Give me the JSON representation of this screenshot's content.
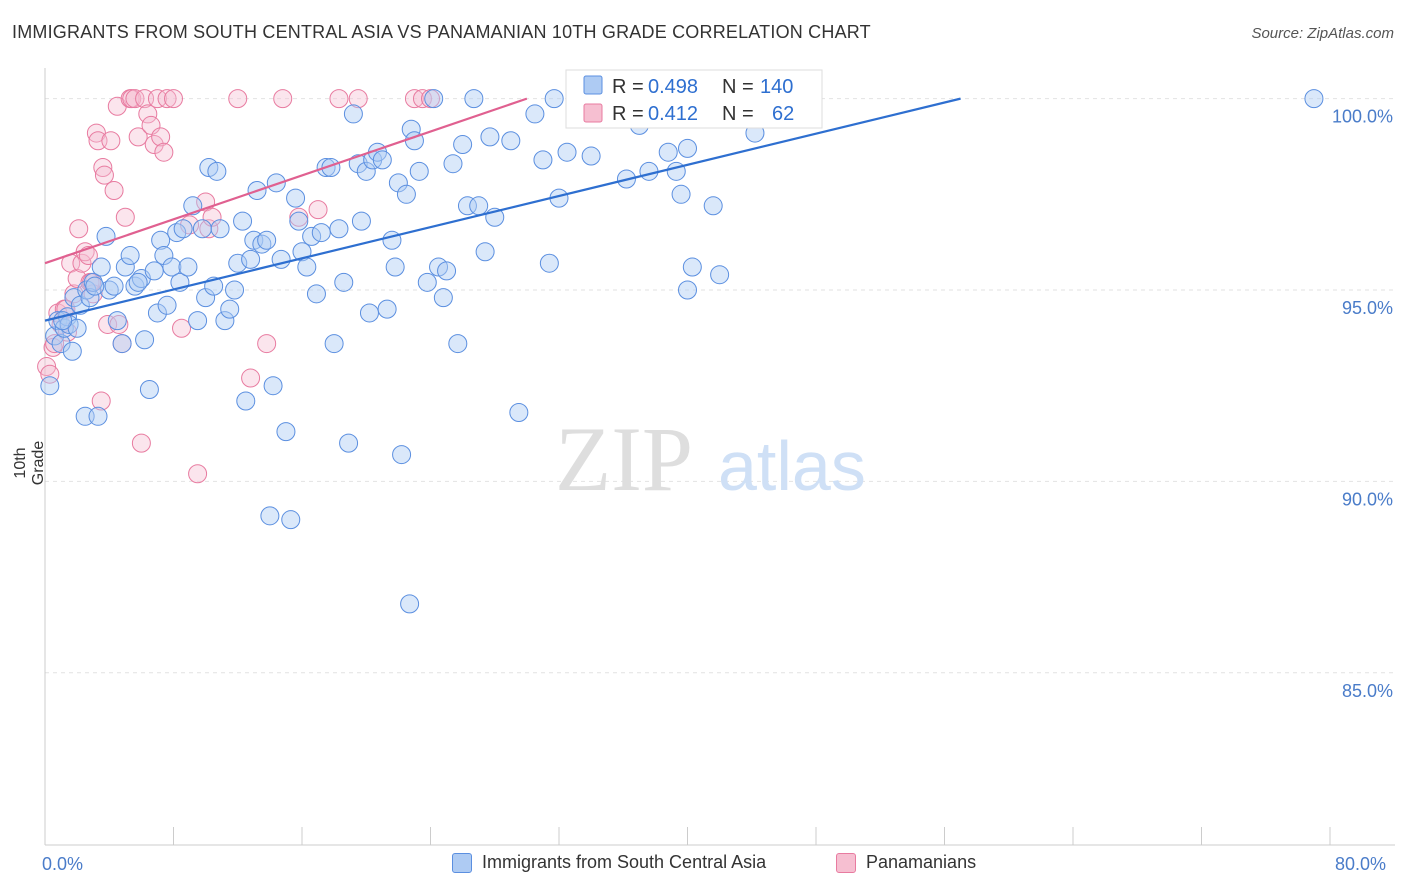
{
  "title": "IMMIGRANTS FROM SOUTH CENTRAL ASIA VS PANAMANIAN 10TH GRADE CORRELATION CHART",
  "source": "Source: ZipAtlas.com",
  "watermark": {
    "zip": "ZIP",
    "atlas": "atlas"
  },
  "colors": {
    "blue": "#5b8fe0",
    "blue_fill": "#aecbf3",
    "blue_line": "#2e6fd0",
    "pink": "#e87ba0",
    "pink_fill": "#f6bfd1",
    "pink_line": "#e06090",
    "tick": "#4a7cc9"
  },
  "legend": {
    "blue": {
      "r_label": "R =",
      "r_value": "0.498",
      "n_label": "N =",
      "n_value": "140"
    },
    "pink": {
      "r_label": "R =",
      "r_value": "0.412",
      "n_label": "N =",
      "n_value": "62"
    }
  },
  "bottom_legend": {
    "blue": "Immigrants from South Central Asia",
    "pink": "Panamanians"
  },
  "chart_data": {
    "type": "scatter",
    "title": "IMMIGRANTS FROM SOUTH CENTRAL ASIA VS PANAMANIAN 10TH GRADE CORRELATION CHART",
    "xlabel": "",
    "ylabel": "10th Grade",
    "xlim": [
      0,
      80
    ],
    "ylim": [
      80.5,
      100.8
    ],
    "x_tick_labels": [
      "0.0%",
      "80.0%"
    ],
    "y_ticks": [
      100,
      95,
      90,
      85
    ],
    "y_tick_labels": [
      "100.0%",
      "95.0%",
      "90.0%",
      "85.0%"
    ],
    "grid": true,
    "legend_position": "top-center",
    "series": [
      {
        "name": "Immigrants from South Central Asia",
        "trend": {
          "x": [
            0,
            57
          ],
          "y": [
            94.2,
            100
          ]
        },
        "points": [
          [
            0.3,
            92.5
          ],
          [
            0.6,
            93.8
          ],
          [
            0.8,
            94.2
          ],
          [
            1.0,
            93.6
          ],
          [
            1.2,
            94.0
          ],
          [
            1.4,
            94.3
          ],
          [
            1.5,
            94.1
          ],
          [
            1.7,
            93.4
          ],
          [
            1.8,
            94.8
          ],
          [
            2.0,
            94.0
          ],
          [
            2.2,
            94.6
          ],
          [
            2.5,
            91.7
          ],
          [
            2.6,
            95.0
          ],
          [
            2.8,
            94.8
          ],
          [
            3.0,
            95.2
          ],
          [
            3.3,
            91.7
          ],
          [
            3.5,
            95.6
          ],
          [
            3.8,
            96.4
          ],
          [
            4.0,
            95.0
          ],
          [
            4.3,
            95.1
          ],
          [
            4.5,
            94.2
          ],
          [
            4.8,
            93.6
          ],
          [
            5.0,
            95.6
          ],
          [
            5.3,
            95.9
          ],
          [
            5.6,
            95.1
          ],
          [
            6.0,
            95.3
          ],
          [
            6.2,
            93.7
          ],
          [
            6.5,
            92.4
          ],
          [
            6.8,
            95.5
          ],
          [
            7.0,
            94.4
          ],
          [
            7.2,
            96.3
          ],
          [
            7.4,
            95.9
          ],
          [
            7.6,
            94.6
          ],
          [
            7.9,
            95.6
          ],
          [
            8.2,
            96.5
          ],
          [
            8.4,
            95.2
          ],
          [
            8.6,
            96.6
          ],
          [
            8.9,
            95.6
          ],
          [
            9.2,
            97.2
          ],
          [
            9.5,
            94.2
          ],
          [
            9.8,
            96.6
          ],
          [
            10.0,
            94.8
          ],
          [
            10.2,
            98.2
          ],
          [
            10.5,
            95.1
          ],
          [
            10.7,
            98.1
          ],
          [
            10.9,
            96.6
          ],
          [
            11.2,
            94.2
          ],
          [
            11.5,
            94.5
          ],
          [
            11.8,
            95.0
          ],
          [
            12.0,
            95.7
          ],
          [
            12.3,
            96.8
          ],
          [
            12.5,
            92.1
          ],
          [
            12.8,
            95.8
          ],
          [
            13.0,
            96.3
          ],
          [
            13.2,
            97.6
          ],
          [
            13.5,
            96.2
          ],
          [
            13.8,
            96.3
          ],
          [
            14.0,
            89.1
          ],
          [
            14.2,
            92.5
          ],
          [
            14.4,
            97.8
          ],
          [
            14.7,
            95.8
          ],
          [
            15.0,
            91.3
          ],
          [
            15.3,
            89.0
          ],
          [
            15.6,
            97.4
          ],
          [
            15.8,
            96.8
          ],
          [
            16.0,
            96.0
          ],
          [
            16.3,
            95.6
          ],
          [
            16.6,
            96.4
          ],
          [
            16.9,
            94.9
          ],
          [
            17.2,
            96.5
          ],
          [
            17.5,
            98.2
          ],
          [
            17.8,
            98.2
          ],
          [
            18.0,
            93.6
          ],
          [
            18.3,
            96.6
          ],
          [
            18.6,
            95.2
          ],
          [
            18.9,
            91.0
          ],
          [
            19.2,
            99.6
          ],
          [
            19.5,
            98.3
          ],
          [
            19.7,
            96.8
          ],
          [
            20.0,
            98.1
          ],
          [
            20.2,
            94.4
          ],
          [
            20.4,
            98.4
          ],
          [
            20.7,
            98.6
          ],
          [
            21.0,
            98.4
          ],
          [
            21.3,
            94.5
          ],
          [
            21.6,
            96.3
          ],
          [
            21.8,
            95.6
          ],
          [
            22.0,
            97.8
          ],
          [
            22.2,
            90.7
          ],
          [
            22.5,
            97.5
          ],
          [
            22.8,
            99.2
          ],
          [
            23.0,
            98.9
          ],
          [
            23.3,
            98.1
          ],
          [
            23.8,
            95.2
          ],
          [
            24.2,
            100.0
          ],
          [
            24.5,
            95.6
          ],
          [
            24.8,
            94.8
          ],
          [
            25.0,
            95.5
          ],
          [
            25.4,
            98.3
          ],
          [
            25.7,
            93.6
          ],
          [
            26.0,
            98.8
          ],
          [
            26.3,
            97.2
          ],
          [
            26.7,
            100.0
          ],
          [
            27.0,
            97.2
          ],
          [
            27.4,
            96.0
          ],
          [
            27.7,
            99.0
          ],
          [
            28.0,
            96.9
          ],
          [
            29.0,
            98.9
          ],
          [
            29.5,
            91.8
          ],
          [
            30.5,
            99.6
          ],
          [
            31.0,
            98.4
          ],
          [
            31.4,
            95.7
          ],
          [
            31.7,
            100.0
          ],
          [
            32.0,
            97.4
          ],
          [
            32.5,
            98.6
          ],
          [
            33.2,
            100.0
          ],
          [
            34.0,
            98.5
          ],
          [
            35.4,
            100.0
          ],
          [
            36.2,
            97.9
          ],
          [
            37.0,
            99.3
          ],
          [
            37.6,
            98.1
          ],
          [
            38.5,
            100.0
          ],
          [
            38.8,
            98.6
          ],
          [
            39.3,
            98.1
          ],
          [
            39.6,
            97.5
          ],
          [
            40.0,
            95.0
          ],
          [
            40.3,
            95.6
          ],
          [
            41.6,
            97.2
          ],
          [
            42.0,
            95.4
          ],
          [
            43.6,
            100.0
          ],
          [
            44.2,
            99.1
          ],
          [
            44.8,
            99.8
          ],
          [
            45.2,
            99.6
          ],
          [
            46.0,
            100.0
          ],
          [
            22.7,
            86.8
          ],
          [
            79.0,
            100.0
          ],
          [
            40.0,
            98.7
          ],
          [
            1.1,
            94.2
          ],
          [
            3.1,
            95.1
          ],
          [
            5.8,
            95.2
          ]
        ]
      },
      {
        "name": "Panamanians",
        "trend": {
          "x": [
            0,
            30
          ],
          "y": [
            95.7,
            100
          ]
        },
        "points": [
          [
            0.1,
            93.0
          ],
          [
            0.3,
            92.8
          ],
          [
            0.5,
            93.5
          ],
          [
            0.8,
            94.4
          ],
          [
            1.0,
            94.1
          ],
          [
            1.2,
            94.5
          ],
          [
            1.4,
            93.9
          ],
          [
            1.6,
            95.7
          ],
          [
            1.8,
            94.9
          ],
          [
            2.0,
            95.3
          ],
          [
            2.1,
            96.6
          ],
          [
            2.3,
            95.7
          ],
          [
            2.5,
            96.0
          ],
          [
            2.7,
            95.9
          ],
          [
            2.8,
            95.2
          ],
          [
            3.0,
            94.9
          ],
          [
            3.2,
            99.1
          ],
          [
            3.3,
            98.9
          ],
          [
            3.5,
            92.1
          ],
          [
            3.6,
            98.2
          ],
          [
            3.7,
            98.0
          ],
          [
            3.9,
            94.1
          ],
          [
            4.1,
            98.9
          ],
          [
            4.3,
            97.6
          ],
          [
            4.5,
            99.8
          ],
          [
            4.6,
            94.1
          ],
          [
            4.8,
            93.6
          ],
          [
            5.0,
            96.9
          ],
          [
            5.3,
            100.0
          ],
          [
            5.4,
            100.0
          ],
          [
            5.6,
            100.0
          ],
          [
            5.8,
            99.0
          ],
          [
            6.0,
            91.0
          ],
          [
            6.2,
            100.0
          ],
          [
            6.4,
            99.6
          ],
          [
            6.6,
            99.3
          ],
          [
            6.8,
            98.8
          ],
          [
            7.0,
            100.0
          ],
          [
            7.2,
            99.0
          ],
          [
            7.4,
            98.6
          ],
          [
            7.6,
            100.0
          ],
          [
            8.0,
            100.0
          ],
          [
            8.5,
            94.0
          ],
          [
            9.0,
            96.7
          ],
          [
            9.5,
            90.2
          ],
          [
            10.0,
            97.3
          ],
          [
            10.2,
            96.6
          ],
          [
            10.4,
            96.9
          ],
          [
            12.0,
            100.0
          ],
          [
            12.8,
            92.7
          ],
          [
            13.8,
            93.6
          ],
          [
            14.8,
            100.0
          ],
          [
            15.8,
            96.9
          ],
          [
            17.0,
            97.1
          ],
          [
            18.3,
            100.0
          ],
          [
            19.5,
            100.0
          ],
          [
            23.0,
            100.0
          ],
          [
            23.5,
            100.0
          ],
          [
            24.0,
            100.0
          ],
          [
            2.9,
            95.2
          ],
          [
            1.3,
            94.5
          ],
          [
            0.6,
            93.6
          ]
        ]
      }
    ]
  }
}
